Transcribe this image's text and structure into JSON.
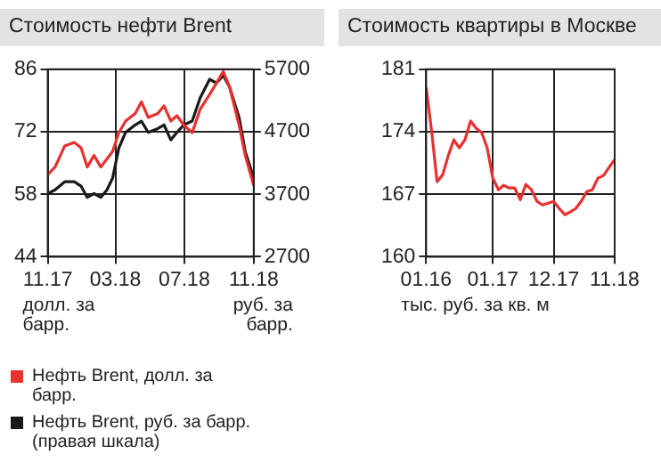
{
  "chart_data": [
    {
      "type": "line",
      "title": "Стоимость нефти Brent",
      "ylabel": "долл. за барр.",
      "y2label": "руб. за барр.",
      "legend": "bottom",
      "grid": true,
      "xlim": [
        "2017-11-01",
        "2018-11-01"
      ],
      "xticks": [
        {
          "value": "2017-11-01",
          "label": "11.17"
        },
        {
          "value": "2018-03-01",
          "label": "03.18"
        },
        {
          "value": "2018-07-01",
          "label": "07.18"
        },
        {
          "value": "2018-11-01",
          "label": "11.18"
        }
      ],
      "ylim": [
        44,
        86
      ],
      "yticks": [
        44,
        58,
        72,
        86
      ],
      "y2lim": [
        2700,
        5700
      ],
      "y2ticks": [
        2700,
        3700,
        4700,
        5700
      ],
      "x": [
        "2017-11-01",
        "2017-11-14",
        "2017-12-01",
        "2017-12-18",
        "2017-12-30",
        "2018-01-10",
        "2018-01-22",
        "2018-02-03",
        "2018-02-14",
        "2018-02-24",
        "2018-03-07",
        "2018-03-19",
        "2018-04-05",
        "2018-04-16",
        "2018-04-28",
        "2018-05-15",
        "2018-05-26",
        "2018-06-07",
        "2018-06-18",
        "2018-06-30",
        "2018-07-15",
        "2018-07-29",
        "2018-08-15",
        "2018-08-27",
        "2018-09-08",
        "2018-09-19",
        "2018-10-06",
        "2018-10-17",
        "2018-11-01"
      ],
      "series": [
        {
          "name": "Нефть Brent, долл. за барр.",
          "color": "#e8312f",
          "values": [
            62.4,
            64.1,
            68.8,
            69.6,
            68.4,
            64.1,
            66.7,
            64.1,
            65.9,
            67.6,
            71.8,
            74.4,
            76.1,
            78.7,
            75.2,
            76.1,
            77.8,
            74.4,
            75.6,
            73.5,
            71.8,
            77.0,
            80.4,
            82.9,
            85.5,
            82.1,
            73.5,
            66.7,
            59.9
          ]
        },
        {
          "name": "Нефть Brent, руб. за барр. (правая шкала)",
          "color": "#1a1a1a",
          "axis": "y2",
          "values": [
            3710,
            3770,
            3900,
            3900,
            3830,
            3650,
            3710,
            3650,
            3770,
            3960,
            4440,
            4690,
            4810,
            4870,
            4690,
            4750,
            4810,
            4570,
            4690,
            4810,
            4870,
            5240,
            5540,
            5480,
            5600,
            5420,
            4930,
            4380,
            3960
          ]
        }
      ]
    },
    {
      "type": "line",
      "title": "Стоимость квартиры в Москве",
      "ylabel": "тыс. руб. за кв. м",
      "grid": true,
      "xlim": [
        "2016-01-01",
        "2018-11-01"
      ],
      "xticks": [
        {
          "value": "2016-01-01",
          "label": "01.16"
        },
        {
          "value": "2017-01-01",
          "label": "01.17"
        },
        {
          "value": "2017-12-01",
          "label": "12.17"
        },
        {
          "value": "2018-11-01",
          "label": "11.18"
        }
      ],
      "ylim": [
        160,
        181
      ],
      "yticks": [
        160,
        167,
        174,
        181
      ],
      "x": [
        "2016-01",
        "2016-02",
        "2016-03",
        "2016-04",
        "2016-05",
        "2016-06",
        "2016-07",
        "2016-08",
        "2016-09",
        "2016-10",
        "2016-11",
        "2016-12",
        "2017-01",
        "2017-02",
        "2017-03",
        "2017-04",
        "2017-05",
        "2017-06",
        "2017-07",
        "2017-08",
        "2017-09",
        "2017-10",
        "2017-11",
        "2017-12",
        "2018-01",
        "2018-02",
        "2018-03",
        "2018-04",
        "2018-05",
        "2018-06",
        "2018-07",
        "2018-08",
        "2018-09",
        "2018-10",
        "2018-11"
      ],
      "series": [
        {
          "color": "#e8312f",
          "values": [
            179.0,
            173.9,
            168.4,
            169.2,
            171.3,
            173.1,
            172.2,
            173.1,
            175.2,
            174.4,
            173.9,
            172.2,
            168.8,
            167.5,
            168.0,
            167.7,
            167.7,
            166.4,
            168.1,
            167.5,
            166.2,
            165.8,
            166.0,
            166.2,
            165.4,
            164.7,
            165.0,
            165.4,
            166.2,
            167.3,
            167.5,
            168.8,
            169.1,
            170.0,
            170.9
          ]
        }
      ]
    }
  ]
}
